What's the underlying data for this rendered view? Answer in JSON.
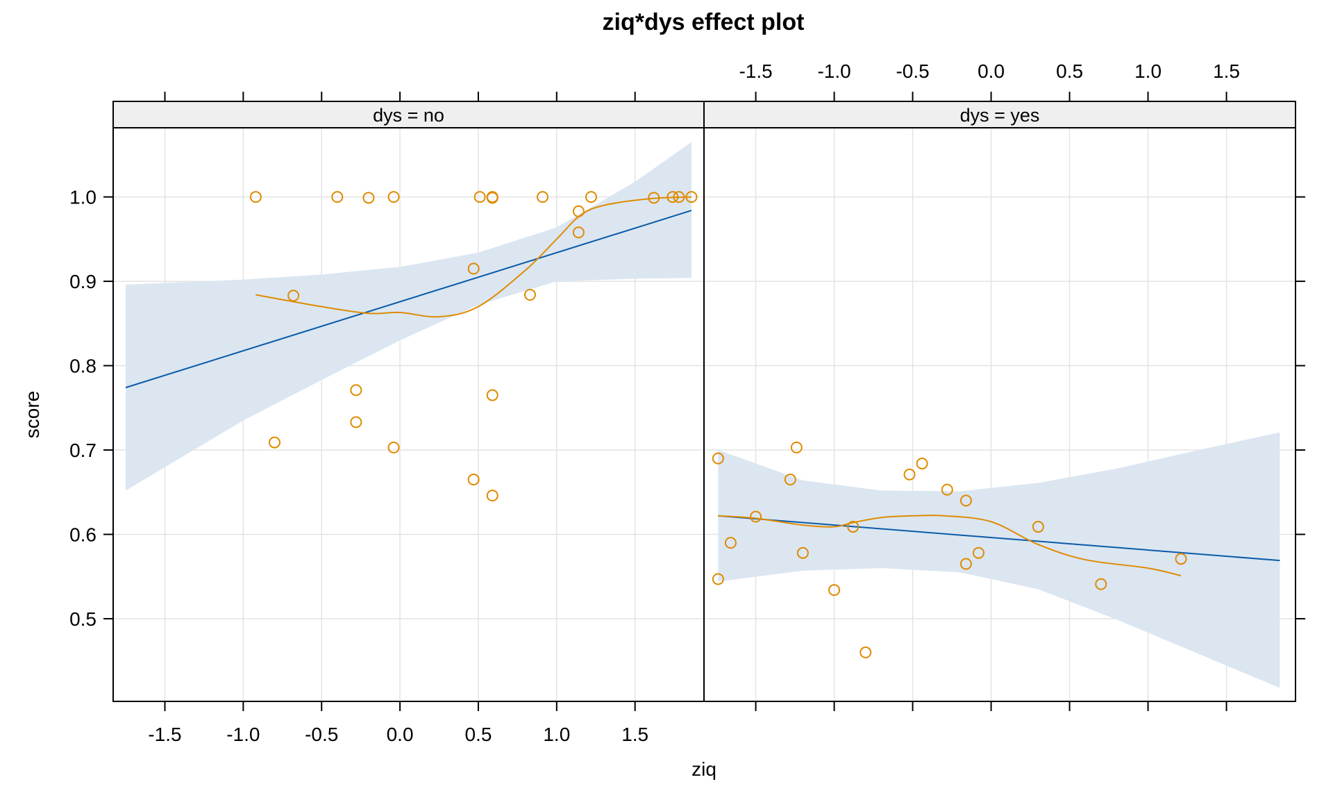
{
  "chart_data": {
    "type": "scatter",
    "title": "ziq*dys effect plot",
    "xlabel": "ziq",
    "ylabel": "score",
    "xlim": [
      -1.83,
      1.94
    ],
    "ylim": [
      0.402,
      1.082
    ],
    "x_ticks": [
      -1.5,
      -1.0,
      -0.5,
      0.0,
      0.5,
      1.0,
      1.5
    ],
    "x_tick_labels": [
      "-1.5",
      "-1.0",
      "-0.5",
      "0.0",
      "0.5",
      "1.0",
      "1.5"
    ],
    "y_ticks": [
      0.5,
      0.6,
      0.7,
      0.8,
      0.9,
      1.0
    ],
    "y_tick_labels": [
      "0.5",
      "0.6",
      "0.7",
      "0.8",
      "0.9",
      "1.0"
    ],
    "grid": true,
    "colors": {
      "points": "#e08a00",
      "smooth": "#e08a00",
      "fit": "#0a5aa8",
      "band": "#dbe6f1",
      "strip": "#efefef",
      "grid": "#e3e3e3"
    },
    "panels": [
      {
        "strip": "dys = no",
        "points": [
          [
            -0.92,
            1.0
          ],
          [
            -0.4,
            1.0
          ],
          [
            -0.2,
            0.999
          ],
          [
            -0.04,
            1.0
          ],
          [
            0.51,
            1.0
          ],
          [
            0.59,
            1.0
          ],
          [
            0.59,
            0.999
          ],
          [
            0.91,
            1.0
          ],
          [
            1.22,
            1.0
          ],
          [
            1.14,
            0.983
          ],
          [
            1.14,
            0.958
          ],
          [
            1.62,
            0.999
          ],
          [
            1.74,
            1.0
          ],
          [
            1.78,
            1.0
          ],
          [
            1.86,
            1.0
          ],
          [
            0.47,
            0.915
          ],
          [
            0.83,
            0.884
          ],
          [
            -0.68,
            0.883
          ],
          [
            -0.28,
            0.771
          ],
          [
            0.59,
            0.765
          ],
          [
            -0.28,
            0.733
          ],
          [
            -0.8,
            0.709
          ],
          [
            -0.04,
            0.703
          ],
          [
            0.47,
            0.665
          ],
          [
            0.59,
            0.646
          ]
        ],
        "fit_line": [
          [
            -1.75,
            0.774
          ],
          [
            1.86,
            0.984
          ]
        ],
        "band_upper": [
          [
            -1.75,
            0.896
          ],
          [
            -1.0,
            0.902
          ],
          [
            -0.5,
            0.908
          ],
          [
            0.0,
            0.917
          ],
          [
            0.5,
            0.934
          ],
          [
            1.0,
            0.964
          ],
          [
            1.5,
            1.018
          ],
          [
            1.86,
            1.065
          ]
        ],
        "band_lower": [
          [
            -1.75,
            0.652
          ],
          [
            -1.0,
            0.735
          ],
          [
            -0.5,
            0.783
          ],
          [
            0.0,
            0.83
          ],
          [
            0.5,
            0.872
          ],
          [
            1.0,
            0.9
          ],
          [
            1.5,
            0.903
          ],
          [
            1.86,
            0.904
          ]
        ],
        "smooth": [
          [
            -0.92,
            0.884
          ],
          [
            -0.5,
            0.87
          ],
          [
            -0.2,
            0.862
          ],
          [
            0.0,
            0.863
          ],
          [
            0.25,
            0.858
          ],
          [
            0.5,
            0.87
          ],
          [
            0.8,
            0.913
          ],
          [
            1.0,
            0.95
          ],
          [
            1.15,
            0.978
          ],
          [
            1.3,
            0.99
          ],
          [
            1.6,
            0.998
          ],
          [
            1.86,
            1.0
          ]
        ]
      },
      {
        "strip": "dys = yes",
        "points": [
          [
            -1.74,
            0.69
          ],
          [
            -1.74,
            0.547
          ],
          [
            -1.66,
            0.59
          ],
          [
            -1.5,
            0.621
          ],
          [
            -1.24,
            0.703
          ],
          [
            -1.28,
            0.665
          ],
          [
            -1.2,
            0.578
          ],
          [
            -1.0,
            0.534
          ],
          [
            -0.88,
            0.609
          ],
          [
            -0.8,
            0.46
          ],
          [
            -0.52,
            0.671
          ],
          [
            -0.44,
            0.684
          ],
          [
            -0.28,
            0.653
          ],
          [
            -0.16,
            0.64
          ],
          [
            -0.16,
            0.565
          ],
          [
            -0.08,
            0.578
          ],
          [
            0.3,
            0.609
          ],
          [
            0.7,
            0.541
          ],
          [
            1.21,
            0.571
          ]
        ],
        "fit_line": [
          [
            -1.74,
            0.622
          ],
          [
            1.84,
            0.569
          ]
        ],
        "band_upper": [
          [
            -1.74,
            0.7
          ],
          [
            -1.2,
            0.664
          ],
          [
            -0.7,
            0.652
          ],
          [
            -0.2,
            0.651
          ],
          [
            0.3,
            0.661
          ],
          [
            0.8,
            0.678
          ],
          [
            1.3,
            0.699
          ],
          [
            1.84,
            0.721
          ]
        ],
        "band_lower": [
          [
            -1.74,
            0.544
          ],
          [
            -1.2,
            0.557
          ],
          [
            -0.7,
            0.56
          ],
          [
            -0.2,
            0.555
          ],
          [
            0.3,
            0.535
          ],
          [
            0.8,
            0.499
          ],
          [
            1.3,
            0.46
          ],
          [
            1.84,
            0.418
          ]
        ],
        "smooth": [
          [
            -1.74,
            0.622
          ],
          [
            -1.5,
            0.619
          ],
          [
            -1.2,
            0.611
          ],
          [
            -1.0,
            0.609
          ],
          [
            -0.88,
            0.614
          ],
          [
            -0.7,
            0.62
          ],
          [
            -0.5,
            0.622
          ],
          [
            -0.3,
            0.622
          ],
          [
            0.0,
            0.615
          ],
          [
            0.3,
            0.588
          ],
          [
            0.6,
            0.57
          ],
          [
            1.0,
            0.56
          ],
          [
            1.21,
            0.551
          ]
        ]
      }
    ]
  }
}
